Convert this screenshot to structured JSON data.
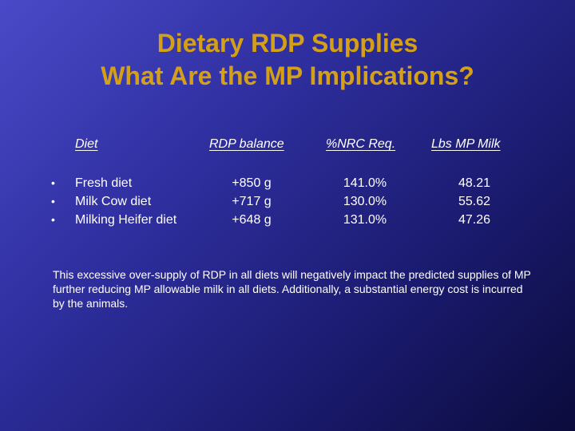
{
  "title": {
    "line1": "Dietary RDP Supplies",
    "line2": "What Are the MP Implications?"
  },
  "table": {
    "headers": [
      "Diet",
      "RDP balance",
      "%NRC Req.",
      "Lbs MP Milk"
    ],
    "rows": [
      {
        "diet": "Fresh diet",
        "rdp": "+850 g",
        "nrc": "141.0%",
        "milk": "48.21"
      },
      {
        "diet": "Milk Cow diet",
        "rdp": "+717 g",
        "nrc": "130.0%",
        "milk": "55.62"
      },
      {
        "diet": "Milking Heifer diet",
        "rdp": "+648 g",
        "nrc": "131.0%",
        "milk": "47.26"
      }
    ]
  },
  "note": "This excessive over-supply of RDP in all diets will negatively impact the predicted supplies of MP further reducing MP allowable milk in all diets. Additionally, a substantial energy cost is incurred by the animals.",
  "colors": {
    "title": "#d4a017",
    "text": "#ffffff",
    "background_top": "#4a4ac8",
    "background_bottom": "#0b0b3c"
  }
}
